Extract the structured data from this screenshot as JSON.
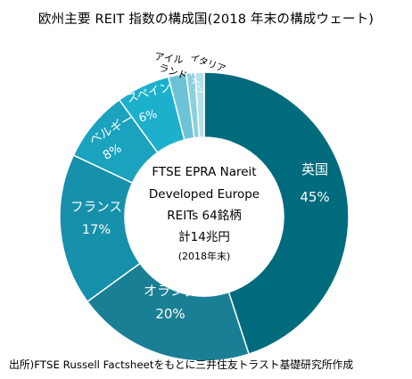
{
  "title": "欧州主要 REIT 指数の構成国(2018 年末の構成ウェート)",
  "source": "出所)FTSE Russell Factsheetをもとに三井住友トラスト基礎研究所作成",
  "center_label": {
    "lines": [
      "FTSE EPRA Nareit",
      "Developed Europe",
      "REITs 64銘柄",
      "計14兆円"
    ],
    "note": "(2018年末)"
  },
  "chart_data": {
    "type": "pie",
    "title": "欧州主要 REIT 指数の構成国(2018 年末の構成ウェート)",
    "slices": [
      {
        "name": "英国",
        "value": 45,
        "label": "45%",
        "color": "#006b7c"
      },
      {
        "name": "オランダ",
        "value": 20,
        "label": "20%",
        "color": "#1a7f94"
      },
      {
        "name": "フランス",
        "value": 17,
        "label": "17%",
        "color": "#1790ab"
      },
      {
        "name": "ベルギー",
        "value": 8,
        "label": "8%",
        "color": "#1aa2bf"
      },
      {
        "name": "スペイン",
        "value": 6,
        "label": "6%",
        "color": "#1cb0cd"
      },
      {
        "name": "アイルランド",
        "value": 2,
        "label": "",
        "color": "#6dc3d6"
      },
      {
        "name": "ドイツ",
        "value": 1,
        "label": "",
        "color": "#8cd0de"
      },
      {
        "name": "イタリア",
        "value": 1,
        "label": "",
        "color": "#b3e0ea"
      }
    ]
  }
}
